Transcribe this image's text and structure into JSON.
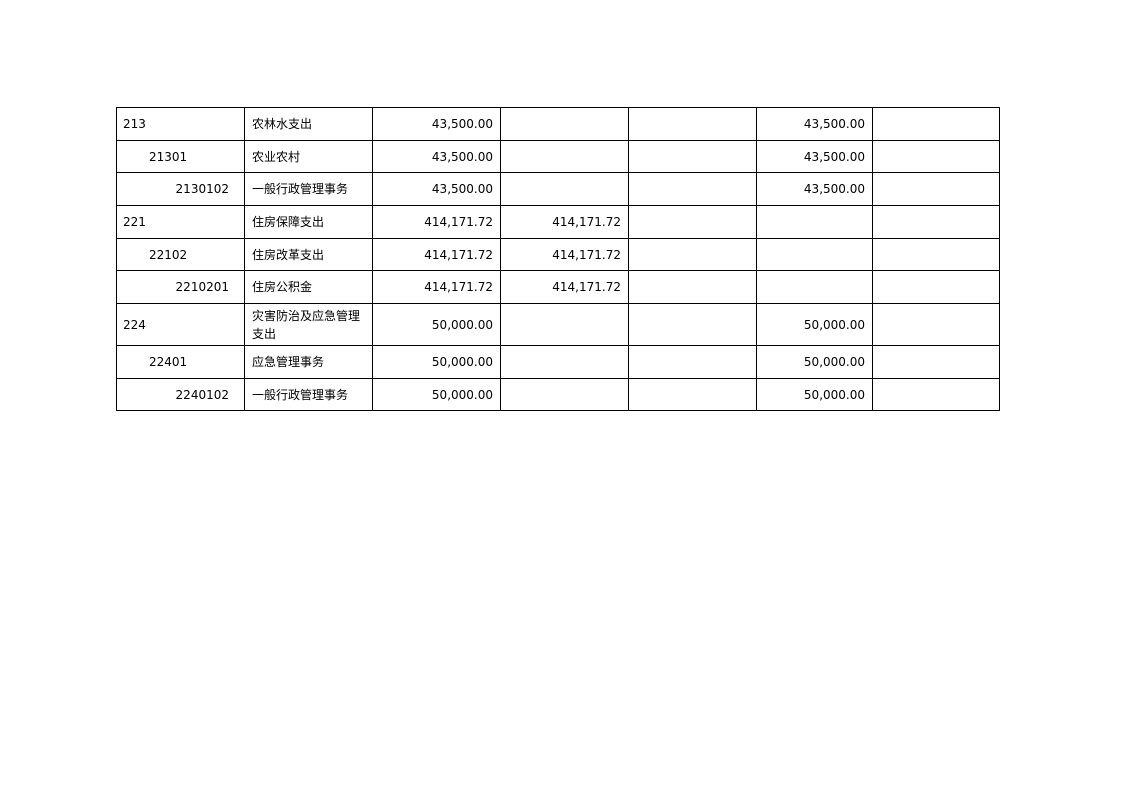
{
  "rows": [
    {
      "code": "213",
      "level": 1,
      "name": "农林水支出",
      "c1": "43,500.00",
      "c2": "",
      "c3": "",
      "c4": "43,500.00",
      "c5": ""
    },
    {
      "code": "21301",
      "level": 2,
      "name": "农业农村",
      "c1": "43,500.00",
      "c2": "",
      "c3": "",
      "c4": "43,500.00",
      "c5": ""
    },
    {
      "code": "2130102",
      "level": 3,
      "name": "一般行政管理事务",
      "c1": "43,500.00",
      "c2": "",
      "c3": "",
      "c4": "43,500.00",
      "c5": ""
    },
    {
      "code": "221",
      "level": 1,
      "name": "住房保障支出",
      "c1": "414,171.72",
      "c2": "414,171.72",
      "c3": "",
      "c4": "",
      "c5": ""
    },
    {
      "code": "22102",
      "level": 2,
      "name": "住房改革支出",
      "c1": "414,171.72",
      "c2": "414,171.72",
      "c3": "",
      "c4": "",
      "c5": ""
    },
    {
      "code": "2210201",
      "level": 3,
      "name": "住房公积金",
      "c1": "414,171.72",
      "c2": "414,171.72",
      "c3": "",
      "c4": "",
      "c5": ""
    },
    {
      "code": "224",
      "level": 1,
      "name": "灾害防治及应急管理支出",
      "c1": "50,000.00",
      "c2": "",
      "c3": "",
      "c4": "50,000.00",
      "c5": ""
    },
    {
      "code": "22401",
      "level": 2,
      "name": "应急管理事务",
      "c1": "50,000.00",
      "c2": "",
      "c3": "",
      "c4": "50,000.00",
      "c5": ""
    },
    {
      "code": "2240102",
      "level": 3,
      "name": "一般行政管理事务",
      "c1": "50,000.00",
      "c2": "",
      "c3": "",
      "c4": "50,000.00",
      "c5": ""
    }
  ]
}
